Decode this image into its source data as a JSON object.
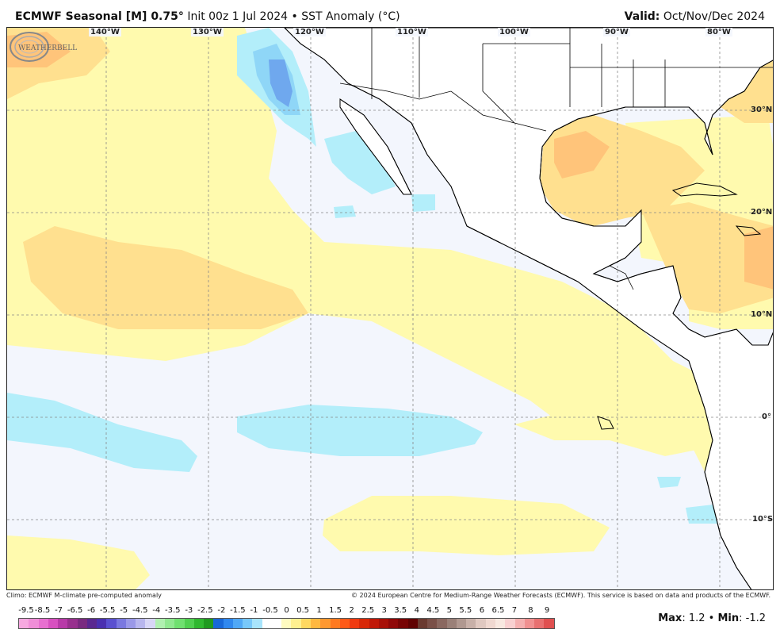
{
  "header": {
    "model": "ECMWF Seasonal [M] 0.75",
    "degree": "°",
    "init": "Init 00z 1 Jul 2024",
    "bullet": "•",
    "field": "SST Anomaly (°C)",
    "valid_label": "Valid:",
    "valid_value": "Oct/Nov/Dec 2024"
  },
  "map": {
    "lon_labels": [
      "140°W",
      "130°W",
      "120°W",
      "110°W",
      "100°W",
      "90°W",
      "80°W"
    ],
    "lat_labels": [
      "30°N",
      "20°N",
      "10°N",
      "0°",
      "10°S"
    ],
    "colors": {
      "neutral": "#f3f6fd",
      "warm_1": "#fffaae",
      "warm_2": "#ffe08f",
      "warm_3": "#ffc47a",
      "cool_1": "#b3eefa",
      "cool_2": "#8fd6f7",
      "cool_3": "#6fa8ee",
      "cool_4": "#4f82e6",
      "land": "#ffffff",
      "coast": "#000000"
    }
  },
  "logo_text": "WEATHERBELL",
  "footer": {
    "left": "Climo: ECMWF M-climate pre-computed anomaly",
    "right": "© 2024 European Centre for Medium-Range Weather Forecasts (ECMWF). This service is based on data and products of the ECMWF."
  },
  "colorbar": {
    "ticks": [
      "-9.5",
      "-8.5",
      "-7",
      "-6.5",
      "-6",
      "-5.5",
      "-5",
      "-4.5",
      "-4",
      "-3.5",
      "-3",
      "-2.5",
      "-2",
      "-1.5",
      "-1",
      "-0.5",
      "0",
      "0.5",
      "1",
      "1.5",
      "2",
      "2.5",
      "3",
      "3.5",
      "4",
      "4.5",
      "5",
      "5.5",
      "6",
      "6.5",
      "7",
      "8",
      "9"
    ],
    "colors": [
      "#f7a8e0",
      "#f08ed8",
      "#e86fd0",
      "#d850c0",
      "#b83aa8",
      "#98308e",
      "#7a2a80",
      "#5a2890",
      "#4a30b0",
      "#5a50d0",
      "#7a78e0",
      "#9a98e8",
      "#b8b6ee",
      "#d8d6f6",
      "#b0f0b0",
      "#90e890",
      "#70e070",
      "#50d050",
      "#30b830",
      "#209a20",
      "#1868d8",
      "#3088ee",
      "#50a8f6",
      "#78c8fa",
      "#a8e4fc",
      "#ffffff",
      "#ffffff",
      "#fffbc0",
      "#fff090",
      "#ffd860",
      "#ffb840",
      "#ff9830",
      "#ff7a20",
      "#ff5a18",
      "#f03a10",
      "#d82808",
      "#c01808",
      "#a81008",
      "#900808",
      "#780404",
      "#600202",
      "#6a3a30",
      "#7a5048",
      "#8a6860",
      "#9a8078",
      "#b09890",
      "#c8b0a8",
      "#e0c8c0",
      "#f0d8d0",
      "#f8e8e0",
      "#f8d0d0",
      "#f4b0b0",
      "#f09090",
      "#e87070",
      "#e05050"
    ]
  },
  "stats": {
    "max_label": "Max",
    "max_value": "1.2",
    "min_label": "Min",
    "min_value": "-1.2"
  }
}
